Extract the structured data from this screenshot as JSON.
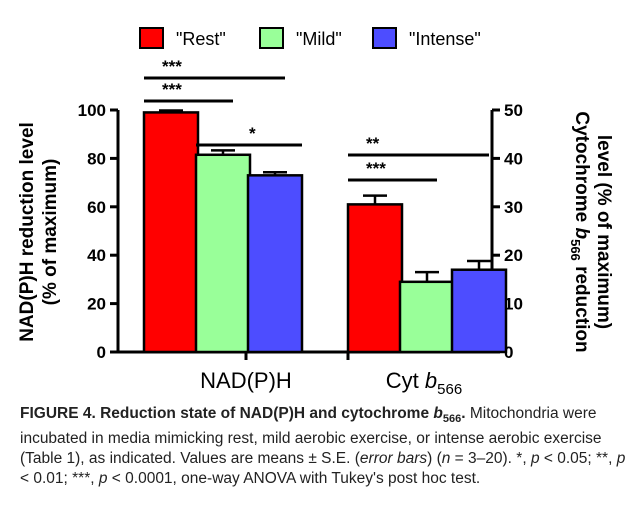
{
  "chart_data": {
    "type": "bar",
    "categories": [
      "NAD(P)H",
      "Cyt b566"
    ],
    "category_labels": [
      {
        "main": "NAD(P)H",
        "sub": ""
      },
      {
        "main": "Cyt b",
        "sub": "566"
      }
    ],
    "series": [
      {
        "name": "\"Rest\"",
        "color": "#ff0000",
        "values": [
          99,
          30.5
        ],
        "errors": [
          0.8,
          1.8
        ]
      },
      {
        "name": "\"Mild\"",
        "color": "#99ff99",
        "values": [
          81.5,
          14.5
        ],
        "errors": [
          1.8,
          2.0
        ]
      },
      {
        "name": "\"Intense\"",
        "color": "#4d4dff",
        "values": [
          73,
          17
        ],
        "errors": [
          1.3,
          1.8
        ]
      }
    ],
    "left_axis": {
      "title_line1": "NAD(P)H reduction level",
      "title_line2": "(% of maximum)",
      "ylim": [
        0,
        100
      ],
      "ticks": [
        "0",
        "20",
        "40",
        "60",
        "80",
        "100"
      ]
    },
    "right_axis": {
      "title_line1a": "Cytochrome ",
      "title_italic": "b",
      "title_sub": "566",
      "title_line1b": " reduction",
      "title_line2": "level (% of maximum)",
      "ylim": [
        0,
        50
      ],
      "ticks": [
        "0",
        "10",
        "20",
        "30",
        "40",
        "50"
      ]
    },
    "significance": [
      {
        "category": 0,
        "from": 0,
        "to": 2,
        "label": "***"
      },
      {
        "category": 0,
        "from": 0,
        "to": 1,
        "label": "***"
      },
      {
        "category": 0,
        "from": 1,
        "to": 2,
        "label": "*"
      },
      {
        "category": 1,
        "from": 0,
        "to": 2,
        "label": "**"
      },
      {
        "category": 1,
        "from": 0,
        "to": 1,
        "label": "***"
      }
    ],
    "legend_position": "top-center"
  },
  "caption": {
    "figure_label": "FIGURE 4. ",
    "title_part1": "Reduction state of NAD(P)H and cytochrome ",
    "title_italic": "b",
    "title_sub": "566",
    "title_end": ".",
    "text1": " Mitochondria were incubated in media mimicking rest, mild aerobic exercise, or intense aerobic exercise (Table 1), as indicated. Values are means ± S.E. (",
    "error_bars": "error bars",
    "text2": ") (",
    "n_label": "n",
    "text3": " = 3–20). *, ",
    "p1": "p",
    "text4": " < 0.05; **, ",
    "p2": "p",
    "text5": " < 0.01; ***, ",
    "p3": "p",
    "text6": " < 0.0001, one-way ANOVA with Tukey's post hoc test."
  }
}
